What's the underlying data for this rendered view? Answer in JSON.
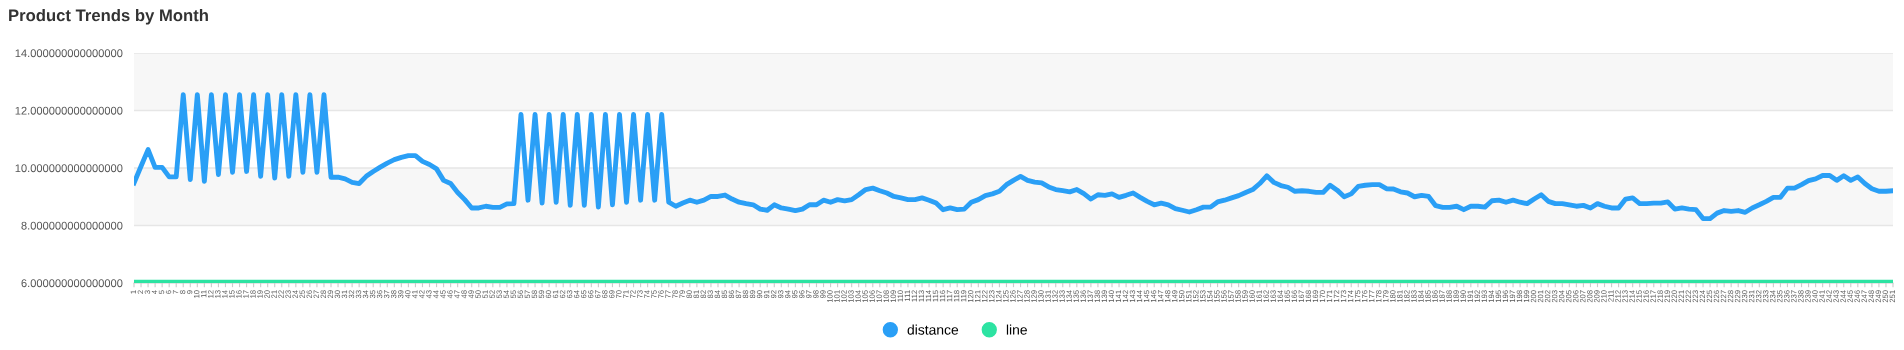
{
  "chart_data": {
    "type": "line",
    "title": "Product Trends by Month",
    "categories": [
      "1",
      "2",
      "3",
      "4",
      "5",
      "6",
      "7",
      "8",
      "9",
      "10",
      "11",
      "12",
      "13",
      "14",
      "15",
      "16",
      "17",
      "18",
      "19",
      "20",
      "21",
      "22",
      "23",
      "24",
      "25",
      "26",
      "27",
      "28",
      "29",
      "30",
      "31",
      "32",
      "33",
      "34",
      "35",
      "36",
      "37",
      "38",
      "39",
      "40",
      "41",
      "42",
      "43",
      "44",
      "45",
      "46",
      "47",
      "48",
      "49",
      "50",
      "51",
      "52",
      "53",
      "54",
      "55",
      "56",
      "57",
      "58",
      "59",
      "60",
      "61",
      "62",
      "63",
      "64",
      "65",
      "66",
      "67",
      "68",
      "69",
      "70",
      "71",
      "72",
      "73",
      "74",
      "75",
      "76",
      "77",
      "78",
      "79",
      "80",
      "81",
      "82",
      "83",
      "84",
      "85",
      "86",
      "87",
      "88",
      "89",
      "90",
      "91",
      "92",
      "93",
      "94",
      "95",
      "96",
      "97",
      "98",
      "99",
      "100",
      "101",
      "102",
      "103",
      "104",
      "105",
      "106",
      "107",
      "108",
      "109",
      "110",
      "111",
      "112",
      "113",
      "114",
      "115",
      "116",
      "117",
      "118",
      "119",
      "120",
      "121",
      "122",
      "123",
      "124",
      "125",
      "126",
      "127",
      "128",
      "129",
      "130",
      "131",
      "132",
      "133",
      "134",
      "135",
      "136",
      "137",
      "138",
      "139",
      "140",
      "141",
      "142",
      "143",
      "144",
      "145",
      "146",
      "147",
      "148",
      "149",
      "150",
      "151",
      "152",
      "153",
      "154",
      "155",
      "156",
      "157",
      "158",
      "159",
      "160",
      "161",
      "162",
      "163",
      "164",
      "165",
      "166",
      "167",
      "168",
      "169",
      "170",
      "171",
      "172",
      "173",
      "174",
      "175",
      "176",
      "177",
      "178",
      "179",
      "180",
      "181",
      "182",
      "183",
      "184",
      "185",
      "186",
      "187",
      "188",
      "189",
      "190",
      "191",
      "192",
      "193",
      "194",
      "195",
      "196",
      "197",
      "198",
      "199",
      "200",
      "201",
      "202",
      "203",
      "204",
      "205",
      "206",
      "207",
      "208",
      "209",
      "210",
      "211",
      "212",
      "213",
      "214",
      "215",
      "216",
      "217",
      "218",
      "219",
      "220",
      "221",
      "222",
      "223",
      "224",
      "225",
      "226",
      "227",
      "228",
      "229",
      "230",
      "231",
      "232",
      "233",
      "234",
      "235",
      "236",
      "237",
      "238",
      "239",
      "240",
      "241",
      "242",
      "243",
      "244",
      "245",
      "246",
      "247",
      "248",
      "249",
      "250",
      "251"
    ],
    "series": [
      {
        "name": "distance",
        "color": "#2a9ff6",
        "values": [
          9.48,
          10.06,
          10.64,
          10.02,
          10.02,
          9.69,
          9.69,
          12.55,
          9.6,
          12.55,
          9.54,
          12.55,
          9.77,
          12.55,
          9.85,
          12.55,
          9.88,
          12.55,
          9.71,
          12.55,
          9.65,
          12.55,
          9.71,
          12.55,
          9.85,
          12.55,
          9.85,
          12.55,
          9.68,
          9.68,
          9.62,
          9.5,
          9.46,
          9.71,
          9.88,
          10.03,
          10.17,
          10.29,
          10.37,
          10.43,
          10.43,
          10.23,
          10.12,
          9.97,
          9.57,
          9.46,
          9.15,
          8.9,
          8.61,
          8.61,
          8.67,
          8.63,
          8.63,
          8.75,
          8.76,
          11.86,
          8.88,
          11.86,
          8.78,
          11.86,
          8.81,
          11.86,
          8.7,
          11.86,
          8.7,
          11.86,
          8.64,
          11.86,
          8.72,
          11.86,
          8.81,
          11.86,
          8.88,
          11.86,
          8.88,
          11.86,
          8.81,
          8.67,
          8.78,
          8.88,
          8.81,
          8.88,
          9.01,
          9.01,
          9.06,
          8.92,
          8.81,
          8.76,
          8.72,
          8.57,
          8.53,
          8.72,
          8.61,
          8.57,
          8.52,
          8.57,
          8.72,
          8.72,
          8.88,
          8.81,
          8.9,
          8.86,
          8.9,
          9.07,
          9.25,
          9.3,
          9.21,
          9.13,
          9.01,
          8.96,
          8.9,
          8.9,
          8.96,
          8.88,
          8.78,
          8.55,
          8.61,
          8.55,
          8.57,
          8.81,
          8.9,
          9.04,
          9.1,
          9.19,
          9.42,
          9.57,
          9.71,
          9.57,
          9.51,
          9.48,
          9.34,
          9.25,
          9.21,
          9.17,
          9.25,
          9.11,
          8.92,
          9.07,
          9.05,
          9.1,
          8.98,
          9.05,
          9.13,
          8.98,
          8.84,
          8.72,
          8.78,
          8.72,
          8.59,
          8.53,
          8.47,
          8.55,
          8.64,
          8.64,
          8.82,
          8.88,
          8.96,
          9.04,
          9.15,
          9.25,
          9.46,
          9.73,
          9.5,
          9.39,
          9.33,
          9.19,
          9.21,
          9.19,
          9.15,
          9.15,
          9.4,
          9.23,
          9.0,
          9.1,
          9.36,
          9.4,
          9.42,
          9.42,
          9.28,
          9.27,
          9.17,
          9.13,
          9.0,
          9.05,
          9.01,
          8.69,
          8.63,
          8.63,
          8.67,
          8.55,
          8.67,
          8.67,
          8.64,
          8.86,
          8.88,
          8.81,
          8.88,
          8.81,
          8.76,
          8.92,
          9.07,
          8.84,
          8.76,
          8.76,
          8.72,
          8.67,
          8.7,
          8.61,
          8.76,
          8.67,
          8.61,
          8.61,
          8.92,
          8.96,
          8.76,
          8.76,
          8.78,
          8.78,
          8.82,
          8.57,
          8.61,
          8.57,
          8.55,
          8.24,
          8.24,
          8.43,
          8.52,
          8.49,
          8.52,
          8.46,
          8.61,
          8.72,
          8.84,
          8.98,
          8.98,
          9.3,
          9.3,
          9.42,
          9.56,
          9.62,
          9.74,
          9.74,
          9.57,
          9.73,
          9.57,
          9.69,
          9.46,
          9.28,
          9.19,
          9.19,
          9.21
        ]
      },
      {
        "name": "line",
        "color": "#2de3a2",
        "values": [
          6,
          6,
          6,
          6,
          6,
          6,
          6,
          6,
          6,
          6,
          6,
          6,
          6,
          6,
          6,
          6,
          6,
          6,
          6,
          6,
          6,
          6,
          6,
          6,
          6,
          6,
          6,
          6,
          6,
          6,
          6,
          6,
          6,
          6,
          6,
          6,
          6,
          6,
          6,
          6,
          6,
          6,
          6,
          6,
          6,
          6,
          6,
          6,
          6,
          6,
          6,
          6,
          6,
          6,
          6,
          6,
          6,
          6,
          6,
          6,
          6,
          6,
          6,
          6,
          6,
          6,
          6,
          6,
          6,
          6,
          6,
          6,
          6,
          6,
          6,
          6,
          6,
          6,
          6,
          6,
          6,
          6,
          6,
          6,
          6,
          6,
          6,
          6,
          6,
          6,
          6,
          6,
          6,
          6,
          6,
          6,
          6,
          6,
          6,
          6,
          6,
          6,
          6,
          6,
          6,
          6,
          6,
          6,
          6,
          6,
          6,
          6,
          6,
          6,
          6,
          6,
          6,
          6,
          6,
          6,
          6,
          6,
          6,
          6,
          6,
          6,
          6,
          6,
          6,
          6,
          6,
          6,
          6,
          6,
          6,
          6,
          6,
          6,
          6,
          6,
          6,
          6,
          6,
          6,
          6,
          6,
          6,
          6,
          6,
          6,
          6,
          6,
          6,
          6,
          6,
          6,
          6,
          6,
          6,
          6,
          6,
          6,
          6,
          6,
          6,
          6,
          6,
          6,
          6,
          6,
          6,
          6,
          6,
          6,
          6,
          6,
          6,
          6,
          6,
          6,
          6,
          6,
          6,
          6,
          6,
          6,
          6,
          6,
          6,
          6,
          6,
          6,
          6,
          6,
          6,
          6,
          6,
          6,
          6,
          6,
          6,
          6,
          6,
          6,
          6,
          6,
          6,
          6,
          6,
          6,
          6,
          6,
          6,
          6,
          6,
          6,
          6,
          6,
          6,
          6,
          6,
          6,
          6,
          6,
          6,
          6,
          6,
          6,
          6,
          6,
          6,
          6,
          6,
          6,
          6,
          6,
          6,
          6,
          6,
          6,
          6,
          6,
          6,
          6,
          6,
          6,
          6,
          6,
          6,
          6,
          6
        ]
      }
    ],
    "ylim": [
      6,
      14
    ],
    "yticks": [
      {
        "value": 6,
        "label": "6.000000000000000"
      },
      {
        "value": 8,
        "label": "8.000000000000000"
      },
      {
        "value": 10,
        "label": "10.000000000000000"
      },
      {
        "value": 12,
        "label": "12.000000000000000"
      },
      {
        "value": 14,
        "label": "14.000000000000000"
      }
    ],
    "grid": "y",
    "legend": "bottom",
    "marker": "none",
    "line_style": "solid"
  }
}
